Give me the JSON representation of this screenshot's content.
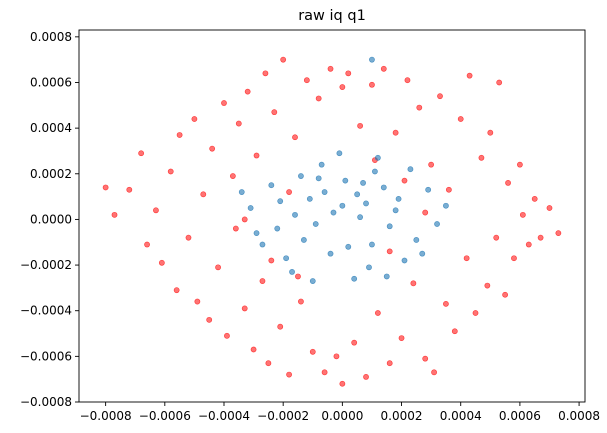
{
  "chart_data": {
    "type": "scatter",
    "title": "raw iq q1",
    "xlabel": "",
    "ylabel": "",
    "xlim": [
      -0.00089,
      0.00082
    ],
    "ylim": [
      -0.0008,
      0.00083
    ],
    "grid": false,
    "x_ticks": [
      -0.0008,
      -0.0006,
      -0.0004,
      -0.0002,
      0.0,
      0.0002,
      0.0004,
      0.0006,
      0.0008
    ],
    "x_tick_labels": [
      "−0.0008",
      "−0.0006",
      "−0.0004",
      "−0.0002",
      "0.0000",
      "0.0002",
      "0.0004",
      "0.0006",
      "0.0008"
    ],
    "y_ticks": [
      -0.0008,
      -0.0006,
      -0.0004,
      -0.0002,
      0.0,
      0.0002,
      0.0004,
      0.0006,
      0.0008
    ],
    "y_tick_labels": [
      "−0.0008",
      "−0.0006",
      "−0.0004",
      "−0.0002",
      "0.0000",
      "0.0002",
      "0.0004",
      "0.0006",
      "0.0008"
    ],
    "series": [
      {
        "color": "#1f77b4",
        "marker_alpha": 0.6,
        "points": [
          [
            -0.00021,
            8e-05
          ],
          [
            5e-05,
            0.00011
          ],
          [
            -9e-05,
            -2e-05
          ],
          [
            0.00018,
            4e-05
          ],
          [
            2e-05,
            -0.00012
          ],
          [
            -0.00014,
            0.00019
          ],
          [
            0.00011,
            0.00021
          ],
          [
            -3e-05,
            3e-05
          ],
          [
            0.00025,
            -9e-05
          ],
          [
            -0.00027,
            -0.00011
          ],
          [
            9e-05,
            -0.00021
          ],
          [
            -0.00017,
            -0.00023
          ],
          [
            0.00014,
            0.00014
          ],
          [
            -7e-05,
            0.00024
          ],
          [
            0.00029,
            0.00013
          ],
          [
            -0.00031,
            5e-05
          ],
          [
            1e-05,
            0.00017
          ],
          [
            -0.00011,
            9e-05
          ],
          [
            0.00021,
            -0.00018
          ],
          [
            -0.00022,
            -4e-05
          ],
          [
            6e-05,
            1e-05
          ],
          [
            -4e-05,
            -0.00015
          ],
          [
            0.00016,
            -3e-05
          ],
          [
            -0.00013,
            -9e-05
          ],
          [
            0.00032,
            -2e-05
          ],
          [
            -0.00024,
            0.00015
          ],
          [
            0.00012,
            0.00027
          ],
          [
            -0.00019,
            -0.00017
          ],
          [
            4e-05,
            -0.00026
          ],
          [
            0.00023,
            0.00022
          ],
          [
            -1e-05,
            0.00029
          ],
          [
            8e-05,
            7e-05
          ],
          [
            -6e-05,
            0.00012
          ],
          [
            0.00019,
            9e-05
          ],
          [
            -0.00016,
            2e-05
          ],
          [
            0.00027,
            -0.00015
          ],
          [
            -0.00029,
            -6e-05
          ],
          [
            0.0001,
            -0.00011
          ],
          [
            -0.0001,
            -0.00027
          ],
          [
            0.00015,
            -0.00025
          ],
          [
            -0.00034,
            0.00012
          ],
          [
            0.00035,
            6e-05
          ],
          [
            0.0,
            6e-05
          ],
          [
            -8e-05,
            0.00018
          ],
          [
            7e-05,
            0.00016
          ],
          [
            0.0001,
            0.0007
          ]
        ]
      },
      {
        "color": "#ff0000",
        "marker_alpha": 0.55,
        "points": [
          [
            -0.0008,
            0.00014
          ],
          [
            -0.00077,
            2e-05
          ],
          [
            -0.00072,
            0.00013
          ],
          [
            -0.00068,
            0.00029
          ],
          [
            -0.00066,
            -0.00011
          ],
          [
            -0.00063,
            4e-05
          ],
          [
            -0.00061,
            -0.00019
          ],
          [
            -0.00058,
            0.00021
          ],
          [
            -0.00056,
            -0.00031
          ],
          [
            -0.00055,
            0.00037
          ],
          [
            -0.00052,
            -8e-05
          ],
          [
            -0.0005,
            0.00044
          ],
          [
            -0.00049,
            -0.00036
          ],
          [
            -0.00047,
            0.00011
          ],
          [
            -0.00045,
            -0.00044
          ],
          [
            -0.00044,
            0.00031
          ],
          [
            -0.00042,
            -0.00021
          ],
          [
            -0.0004,
            0.00051
          ],
          [
            -0.00039,
            -0.00051
          ],
          [
            -0.00037,
            0.00019
          ],
          [
            -0.00036,
            -4e-05
          ],
          [
            -0.00035,
            0.00042
          ],
          [
            -0.00033,
            -0.00039
          ],
          [
            -0.00032,
            0.00056
          ],
          [
            -0.0003,
            -0.00057
          ],
          [
            -0.00029,
            0.00028
          ],
          [
            -0.00027,
            -0.00027
          ],
          [
            -0.00026,
            0.00064
          ],
          [
            -0.00025,
            -0.00063
          ],
          [
            -0.00023,
            0.00047
          ],
          [
            -0.00021,
            -0.00047
          ],
          [
            -0.0002,
            0.0007
          ],
          [
            -0.00018,
            -0.00068
          ],
          [
            -0.00016,
            0.00036
          ],
          [
            -0.00014,
            -0.00036
          ],
          [
            -0.00012,
            0.00061
          ],
          [
            -0.0001,
            -0.00058
          ],
          [
            -8e-05,
            0.00053
          ],
          [
            -6e-05,
            -0.00067
          ],
          [
            -4e-05,
            0.00066
          ],
          [
            -2e-05,
            -0.0006
          ],
          [
            0.0,
            0.00058
          ],
          [
            0.0,
            -0.00072
          ],
          [
            2e-05,
            0.00064
          ],
          [
            4e-05,
            -0.00054
          ],
          [
            6e-05,
            0.00041
          ],
          [
            8e-05,
            -0.00069
          ],
          [
            0.0001,
            0.00059
          ],
          [
            0.00012,
            -0.00041
          ],
          [
            0.00014,
            0.00066
          ],
          [
            0.00016,
            -0.00063
          ],
          [
            0.00018,
            0.00038
          ],
          [
            0.0002,
            -0.00052
          ],
          [
            0.00022,
            0.00061
          ],
          [
            0.00024,
            -0.00028
          ],
          [
            0.00026,
            0.00049
          ],
          [
            0.00028,
            -0.00061
          ],
          [
            0.0003,
            0.00024
          ],
          [
            0.00031,
            -0.00067
          ],
          [
            0.00033,
            0.00054
          ],
          [
            0.00035,
            -0.00037
          ],
          [
            0.00036,
            0.00013
          ],
          [
            0.00038,
            -0.00049
          ],
          [
            0.0004,
            0.00044
          ],
          [
            0.00042,
            -0.00017
          ],
          [
            0.00043,
            0.00063
          ],
          [
            0.00045,
            -0.00041
          ],
          [
            0.00047,
            0.00027
          ],
          [
            0.00049,
            -0.00029
          ],
          [
            0.0005,
            0.00038
          ],
          [
            0.00052,
            -8e-05
          ],
          [
            0.00053,
            0.0006
          ],
          [
            0.00055,
            -0.00033
          ],
          [
            0.00056,
            0.00016
          ],
          [
            0.00058,
            -0.00017
          ],
          [
            0.0006,
            0.00024
          ],
          [
            0.00061,
            2e-05
          ],
          [
            0.00063,
            -0.00011
          ],
          [
            0.00065,
            9e-05
          ],
          [
            0.00067,
            -8e-05
          ],
          [
            0.0007,
            5e-05
          ],
          [
            0.00073,
            -6e-05
          ],
          [
            -0.00018,
            0.00012
          ],
          [
            0.00016,
            -0.00014
          ],
          [
            -0.00024,
            -0.00018
          ],
          [
            0.00021,
            0.00017
          ],
          [
            -0.00033,
            0.0
          ],
          [
            0.00028,
            3e-05
          ],
          [
            -0.00015,
            -0.00025
          ],
          [
            0.00011,
            0.00026
          ]
        ]
      }
    ]
  }
}
